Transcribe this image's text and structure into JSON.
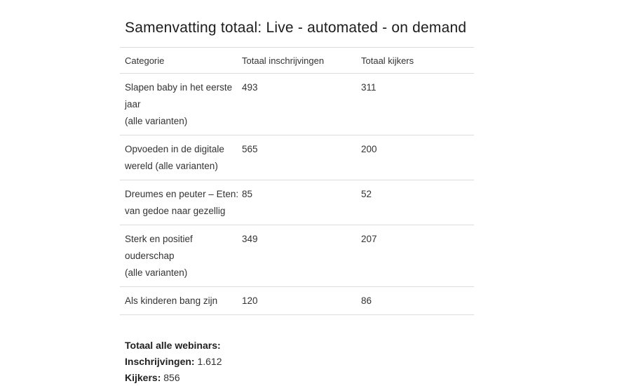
{
  "page": {
    "title": "Samenvatting totaal: Live - automated - on demand"
  },
  "table": {
    "columns": [
      "Categorie",
      "Totaal inschrijvingen",
      "Totaal kijkers"
    ],
    "rows": [
      {
        "category": "Slapen baby in het eerste jaar (alle varianten)",
        "category_line1": "Slapen baby in het eerste jaar",
        "category_line2": "(alle varianten)",
        "inschrijvingen": "493",
        "kijkers": "311"
      },
      {
        "category": "Opvoeden in de digitale wereld (alle varianten)",
        "category_line1": "Opvoeden in de digitale",
        "category_line2": "wereld (alle varianten)",
        "inschrijvingen": "565",
        "kijkers": "200"
      },
      {
        "category": "Dreumes en peuter – Eten: van gedoe naar gezellig",
        "category_line1": "Dreumes en peuter – Eten:",
        "category_line2": "van gedoe naar gezellig",
        "inschrijvingen": "85",
        "kijkers": "52"
      },
      {
        "category": "Sterk en positief ouderschap (alle varianten)",
        "category_line1": "Sterk en positief ouderschap",
        "category_line2": "(alle varianten)",
        "inschrijvingen": "349",
        "kijkers": "207"
      },
      {
        "category": "Als kinderen bang zijn",
        "category_line1": "Als kinderen bang zijn",
        "category_line2": "",
        "inschrijvingen": "120",
        "kijkers": "86"
      }
    ]
  },
  "totals": {
    "heading": "Totaal alle webinars:",
    "inschrijvingen_label": "Inschrijvingen:",
    "inschrijvingen_value": " 1.612",
    "kijkers_label": "Kijkers:",
    "kijkers_value": " 856"
  },
  "colors": {
    "background": "#ffffff",
    "title_text": "#1c1c1c",
    "body_text": "#333333",
    "divider": "#dcdcdc"
  }
}
